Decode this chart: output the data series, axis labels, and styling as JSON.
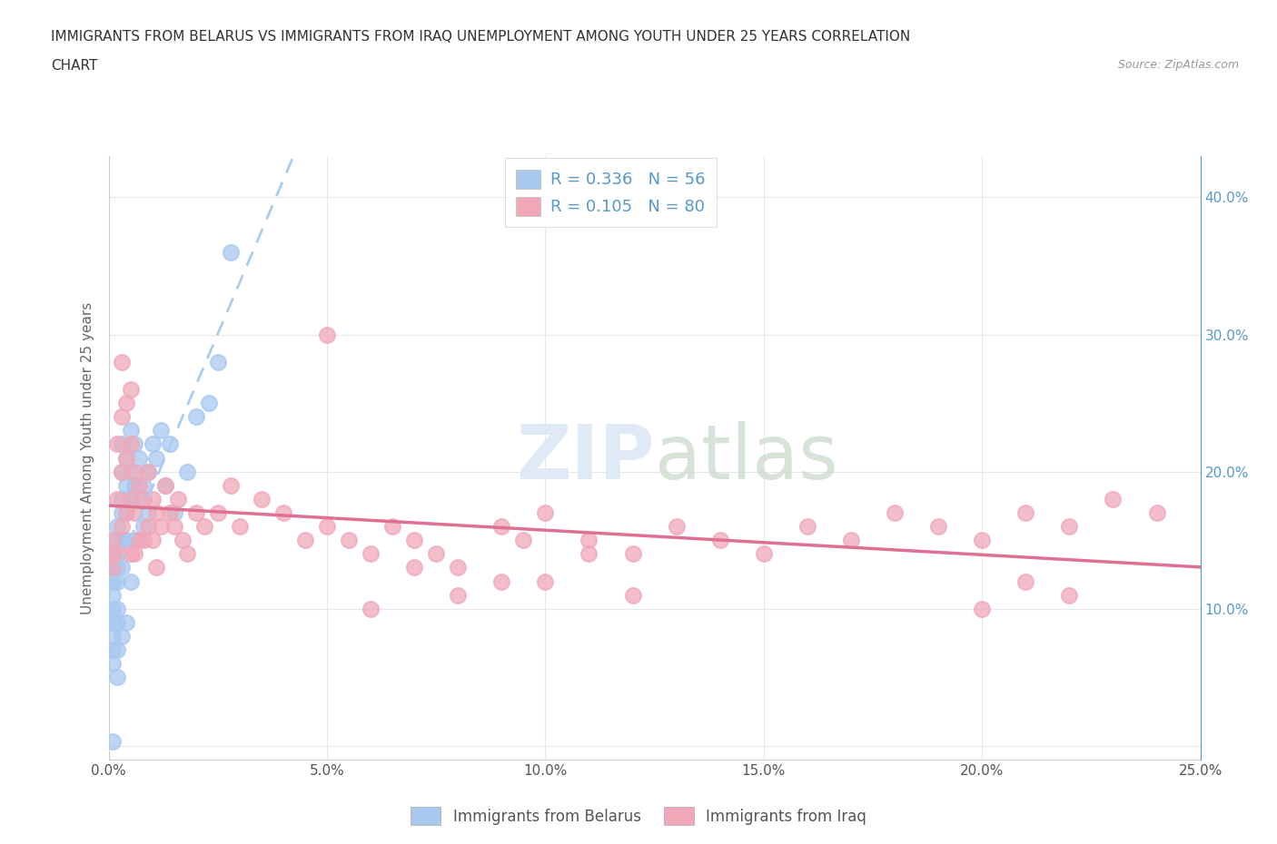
{
  "title_line1": "IMMIGRANTS FROM BELARUS VS IMMIGRANTS FROM IRAQ UNEMPLOYMENT AMONG YOUTH UNDER 25 YEARS CORRELATION",
  "title_line2": "CHART",
  "source": "Source: ZipAtlas.com",
  "ylabel": "Unemployment Among Youth under 25 years",
  "xlim": [
    0.0,
    0.25
  ],
  "ylim": [
    -0.01,
    0.43
  ],
  "xticks": [
    0.0,
    0.05,
    0.1,
    0.15,
    0.2,
    0.25
  ],
  "xticklabels": [
    "0.0%",
    "5.0%",
    "10.0%",
    "15.0%",
    "20.0%",
    "25.0%"
  ],
  "yticks_right": [
    0.1,
    0.2,
    0.3,
    0.4
  ],
  "yticklabels_right": [
    "10.0%",
    "20.0%",
    "30.0%",
    "40.0%"
  ],
  "belarus_color": "#a8c8f0",
  "iraq_color": "#f0a8b8",
  "belarus_trend_color": "#5599cc",
  "iraq_trend_color": "#e07090",
  "legend_r_belarus": "R = 0.336",
  "legend_n_belarus": "N = 56",
  "legend_r_iraq": "R = 0.105",
  "legend_n_iraq": "N = 80",
  "legend_label_belarus": "Immigrants from Belarus",
  "legend_label_iraq": "Immigrants from Iraq",
  "background_color": "#ffffff",
  "grid_color": "#e8e8e8",
  "belarus_x": [
    0.001,
    0.001,
    0.001,
    0.001,
    0.001,
    0.001,
    0.001,
    0.001,
    0.001,
    0.002,
    0.002,
    0.002,
    0.002,
    0.002,
    0.002,
    0.002,
    0.002,
    0.002,
    0.003,
    0.003,
    0.003,
    0.003,
    0.003,
    0.003,
    0.003,
    0.004,
    0.004,
    0.004,
    0.004,
    0.004,
    0.005,
    0.005,
    0.005,
    0.005,
    0.006,
    0.006,
    0.006,
    0.007,
    0.007,
    0.007,
    0.008,
    0.008,
    0.009,
    0.009,
    0.01,
    0.011,
    0.012,
    0.013,
    0.014,
    0.015,
    0.018,
    0.02,
    0.023,
    0.025,
    0.028,
    0.001
  ],
  "belarus_y": [
    0.14,
    0.13,
    0.12,
    0.11,
    0.1,
    0.09,
    0.08,
    0.07,
    0.06,
    0.16,
    0.15,
    0.14,
    0.13,
    0.12,
    0.1,
    0.09,
    0.07,
    0.05,
    0.22,
    0.2,
    0.18,
    0.17,
    0.15,
    0.13,
    0.08,
    0.21,
    0.19,
    0.17,
    0.15,
    0.09,
    0.23,
    0.2,
    0.18,
    0.12,
    0.22,
    0.19,
    0.15,
    0.21,
    0.18,
    0.15,
    0.19,
    0.16,
    0.2,
    0.17,
    0.22,
    0.21,
    0.23,
    0.19,
    0.22,
    0.17,
    0.2,
    0.24,
    0.25,
    0.28,
    0.36,
    0.003
  ],
  "iraq_x": [
    0.001,
    0.001,
    0.001,
    0.002,
    0.002,
    0.002,
    0.003,
    0.003,
    0.003,
    0.003,
    0.004,
    0.004,
    0.004,
    0.005,
    0.005,
    0.005,
    0.005,
    0.006,
    0.006,
    0.006,
    0.007,
    0.007,
    0.008,
    0.008,
    0.009,
    0.009,
    0.01,
    0.01,
    0.011,
    0.011,
    0.012,
    0.013,
    0.014,
    0.015,
    0.016,
    0.017,
    0.018,
    0.02,
    0.022,
    0.025,
    0.028,
    0.03,
    0.035,
    0.04,
    0.045,
    0.05,
    0.055,
    0.06,
    0.065,
    0.07,
    0.075,
    0.08,
    0.09,
    0.095,
    0.1,
    0.11,
    0.12,
    0.13,
    0.14,
    0.15,
    0.16,
    0.17,
    0.18,
    0.19,
    0.2,
    0.21,
    0.22,
    0.23,
    0.24,
    0.05,
    0.06,
    0.07,
    0.08,
    0.09,
    0.1,
    0.11,
    0.12,
    0.2,
    0.21,
    0.22
  ],
  "iraq_y": [
    0.15,
    0.14,
    0.13,
    0.22,
    0.18,
    0.14,
    0.28,
    0.24,
    0.2,
    0.16,
    0.25,
    0.21,
    0.17,
    0.26,
    0.22,
    0.18,
    0.14,
    0.2,
    0.17,
    0.14,
    0.19,
    0.15,
    0.18,
    0.15,
    0.2,
    0.16,
    0.18,
    0.15,
    0.17,
    0.13,
    0.16,
    0.19,
    0.17,
    0.16,
    0.18,
    0.15,
    0.14,
    0.17,
    0.16,
    0.17,
    0.19,
    0.16,
    0.18,
    0.17,
    0.15,
    0.16,
    0.15,
    0.14,
    0.16,
    0.15,
    0.14,
    0.13,
    0.16,
    0.15,
    0.17,
    0.15,
    0.14,
    0.16,
    0.15,
    0.14,
    0.16,
    0.15,
    0.17,
    0.16,
    0.15,
    0.17,
    0.16,
    0.18,
    0.17,
    0.3,
    0.1,
    0.13,
    0.11,
    0.12,
    0.12,
    0.14,
    0.11,
    0.1,
    0.12,
    0.11
  ]
}
